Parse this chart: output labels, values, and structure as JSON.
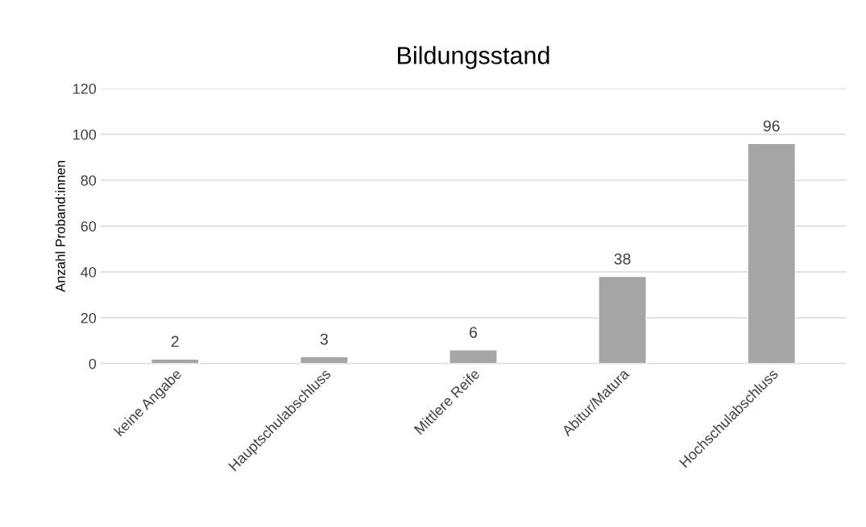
{
  "chart_data": {
    "type": "bar",
    "title": "Bildungsstand",
    "ylabel": "Anzahl Proband:innen",
    "categories": [
      "keine Angabe",
      "Hauptschulabschluss",
      "Mittlere Reife",
      "Abitur/Matura",
      "Hochschulabschluss"
    ],
    "values": [
      2,
      3,
      6,
      38,
      96
    ],
    "color": "#a5a5a5",
    "ylim": [
      0,
      120
    ],
    "yticks": [
      0,
      20,
      40,
      60,
      80,
      100,
      120
    ],
    "grid": "y",
    "data_labels": true
  }
}
